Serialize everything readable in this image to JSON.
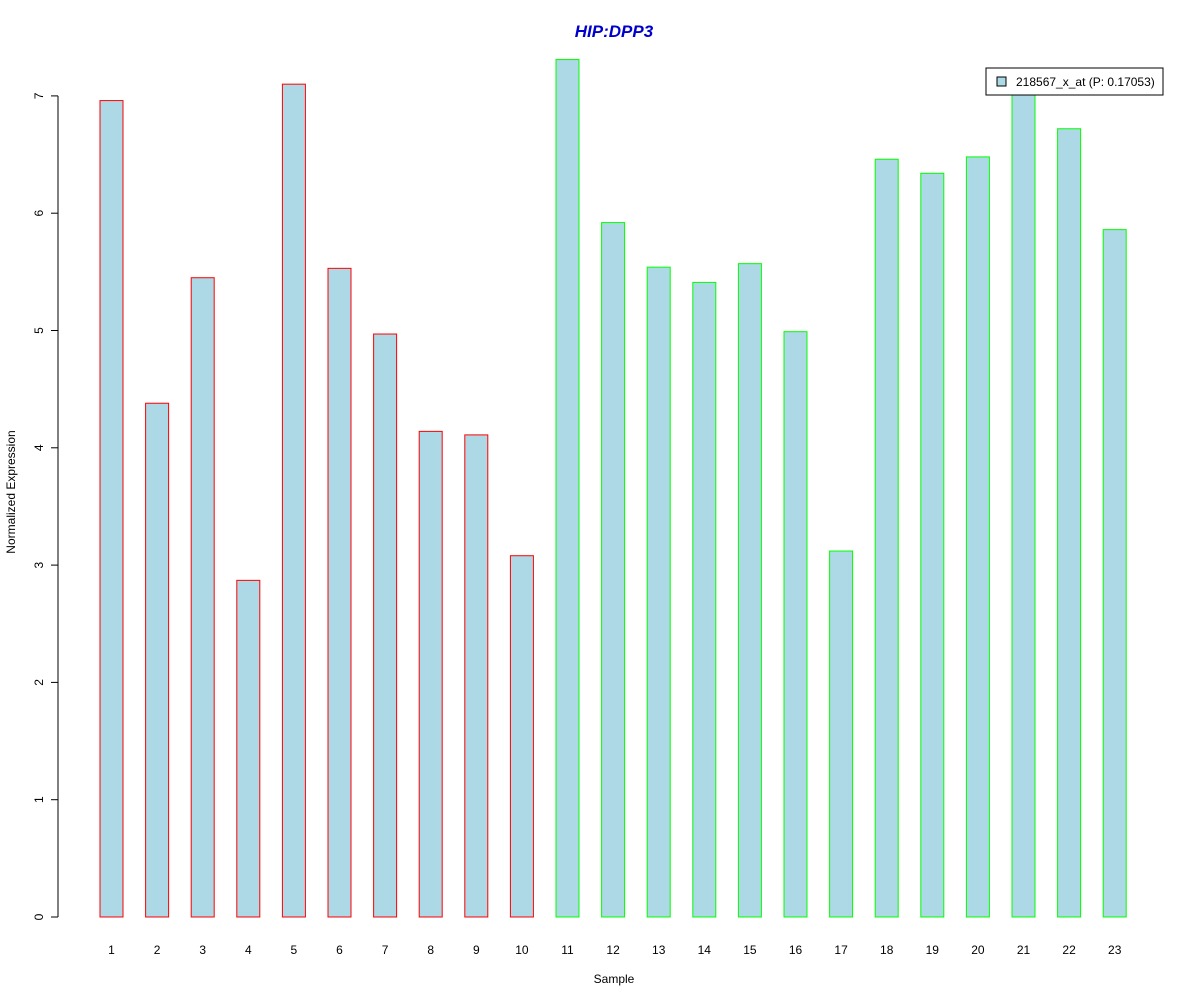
{
  "chart_data": {
    "type": "bar",
    "title": "HIP:DPP3",
    "xlabel": "Sample",
    "ylabel": "Normalized Expression",
    "categories": [
      "1",
      "2",
      "3",
      "4",
      "5",
      "6",
      "7",
      "8",
      "9",
      "10",
      "11",
      "12",
      "13",
      "14",
      "15",
      "16",
      "17",
      "18",
      "19",
      "20",
      "21",
      "22",
      "23"
    ],
    "series": [
      {
        "name": "218567_x_at (P: 0.17053)",
        "values": [
          6.96,
          4.38,
          5.45,
          2.87,
          7.1,
          5.53,
          4.97,
          4.14,
          4.11,
          3.08,
          7.31,
          5.92,
          5.54,
          5.41,
          5.57,
          4.99,
          3.12,
          6.46,
          6.34,
          6.48,
          7.02,
          6.72,
          5.86
        ]
      }
    ],
    "groups": [
      "red",
      "red",
      "red",
      "red",
      "red",
      "red",
      "red",
      "red",
      "red",
      "red",
      "green",
      "green",
      "green",
      "green",
      "green",
      "green",
      "green",
      "green",
      "green",
      "green",
      "green",
      "green",
      "green"
    ],
    "ylim": [
      0,
      7.31
    ],
    "yticks": [
      0,
      1,
      2,
      3,
      4,
      5,
      6,
      7
    ],
    "grid": false,
    "legend_position": "top-right",
    "colors": {
      "bar_fill": "#add8e6",
      "red": "#ff0000",
      "green": "#00ff00",
      "title": "#0000cc",
      "axis": "#000000"
    }
  }
}
